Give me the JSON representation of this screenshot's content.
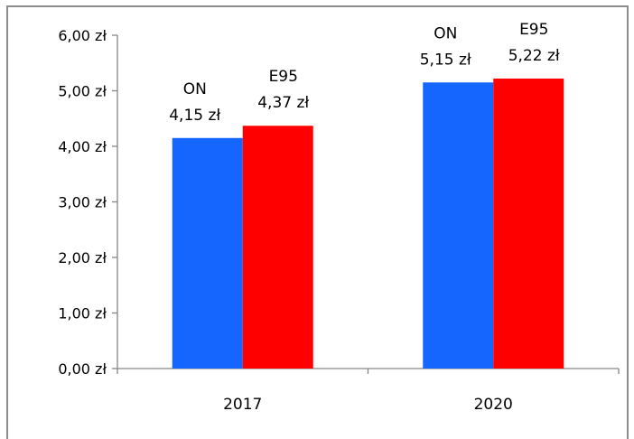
{
  "chart_data": {
    "type": "bar",
    "categories": [
      "2017",
      "2020"
    ],
    "series": [
      {
        "name": "ON",
        "values": [
          4.15,
          5.15
        ],
        "color": "#1565FF"
      },
      {
        "name": "E95",
        "values": [
          4.37,
          5.22
        ],
        "color": "#FF0000"
      }
    ],
    "data_labels": [
      [
        "ON",
        "4,15 zł"
      ],
      [
        "E95",
        "4,37 zł"
      ],
      [
        "ON",
        "5,15 zł"
      ],
      [
        "E95",
        "5,22 zł"
      ]
    ],
    "y_ticks": [
      "0,00 zł",
      "1,00 zł",
      "2,00 zł",
      "3,00 zł",
      "4,00 zł",
      "5,00 zł",
      "6,00 zł"
    ],
    "ylim": [
      0,
      6
    ],
    "grid": false,
    "legend": "none",
    "title": "",
    "xlabel": "",
    "ylabel": ""
  }
}
